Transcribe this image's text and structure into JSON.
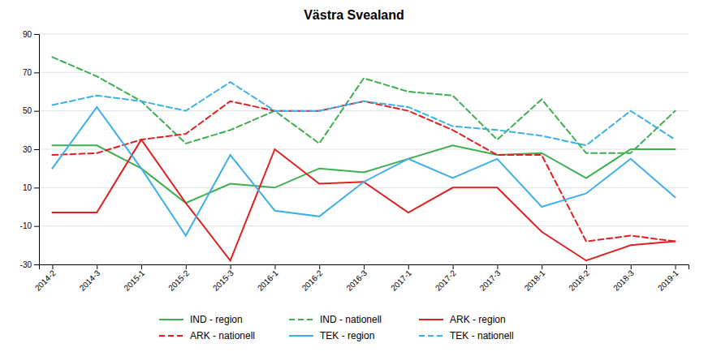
{
  "chart_data": {
    "type": "line",
    "title": "Västra Svealand",
    "categories": [
      "2014-2",
      "2014-3",
      "2015-1",
      "2015-2",
      "2015-3",
      "2016-1",
      "2016-2",
      "2016-3",
      "2017-1",
      "2017-2",
      "2017-3",
      "2018-1",
      "2018-2",
      "2018-3",
      "2019-1"
    ],
    "series": [
      {
        "name": "IND - region",
        "color": "#3daf4f",
        "line_style": "solid",
        "values": [
          32,
          32,
          20,
          2,
          12,
          10,
          20,
          18,
          25,
          32,
          27,
          28,
          15,
          30,
          30
        ]
      },
      {
        "name": "IND - nationell",
        "color": "#3daf4f",
        "line_style": "dashed",
        "values": [
          78,
          68,
          55,
          33,
          40,
          50,
          33,
          67,
          60,
          58,
          35,
          56,
          28,
          28,
          50
        ]
      },
      {
        "name": "ARK - region",
        "color": "#e02020",
        "line_style": "solid",
        "values": [
          -3,
          -3,
          35,
          2,
          -28,
          30,
          12,
          13,
          -3,
          10,
          10,
          -13,
          -28,
          -20,
          -18
        ]
      },
      {
        "name": "ARK - nationell",
        "color": "#e02020",
        "line_style": "dashed",
        "values": [
          27,
          28,
          35,
          38,
          55,
          50,
          50,
          55,
          50,
          40,
          27,
          27,
          -18,
          -15,
          -18
        ]
      },
      {
        "name": "TEK - region",
        "color": "#3db0e8",
        "line_style": "solid",
        "values": [
          20,
          52,
          20,
          -15,
          27,
          -2,
          -5,
          13,
          25,
          15,
          25,
          0,
          7,
          25,
          5
        ]
      },
      {
        "name": "TEK - nationell",
        "color": "#3db0e8",
        "line_style": "dashed",
        "values": [
          53,
          58,
          55,
          50,
          65,
          50,
          50,
          55,
          52,
          42,
          40,
          37,
          32,
          50,
          35
        ]
      }
    ],
    "ylim": [
      -30,
      90
    ],
    "yticks": [
      -30,
      -10,
      10,
      30,
      50,
      70,
      90
    ],
    "grid": true,
    "legend": "bottom"
  }
}
